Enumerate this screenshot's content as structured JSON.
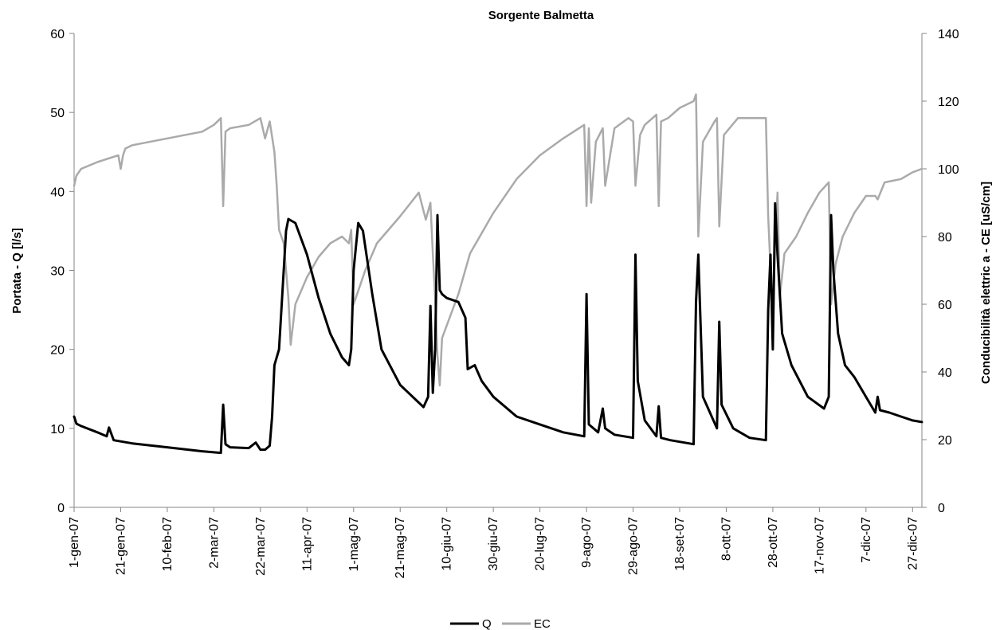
{
  "chart_data": {
    "type": "line",
    "title": "Sorgente Balmetta",
    "ylabel": "Portata - Q  [l/s]",
    "y2label": "Conducibilità elettric a - CE  [uS/cm]",
    "ylim": [
      0,
      60
    ],
    "y2lim": [
      0,
      140
    ],
    "yticks": [
      0,
      10,
      20,
      30,
      40,
      50,
      60
    ],
    "y2ticks": [
      0,
      20,
      40,
      60,
      80,
      100,
      120,
      140
    ],
    "xlim": [
      0,
      364
    ],
    "x_tick_labels": [
      "1-gen-07",
      "21-gen-07",
      "10-feb-07",
      "2-mar-07",
      "22-mar-07",
      "11-apr-07",
      "1-mag-07",
      "21-mag-07",
      "10-giu-07",
      "30-giu-07",
      "20-lug-07",
      "9-ago-07",
      "29-ago-07",
      "18-set-07",
      "8-ott-07",
      "28-ott-07",
      "17-nov-07",
      "7-dic-07",
      "27-dic-07"
    ],
    "x_tick_days": [
      0,
      20,
      40,
      60,
      80,
      100,
      120,
      140,
      160,
      180,
      200,
      220,
      240,
      260,
      280,
      300,
      320,
      340,
      360
    ],
    "legend": "bottom-center",
    "grid": false,
    "series": [
      {
        "name": "Q",
        "axis": "left",
        "color": "#000000",
        "x": [
          0,
          1,
          3,
          10,
          14,
          15,
          17,
          25,
          40,
          55,
          63,
          64,
          65,
          67,
          75,
          78,
          80,
          82,
          84,
          85,
          86,
          88,
          91,
          92,
          95,
          100,
          105,
          110,
          115,
          118,
          119,
          120,
          122,
          124,
          128,
          132,
          140,
          150,
          152,
          153,
          154,
          155,
          156,
          157,
          158,
          160,
          165,
          168,
          169,
          172,
          175,
          180,
          190,
          200,
          210,
          219,
          220,
          221,
          225,
          227,
          228,
          232,
          240,
          241,
          242,
          245,
          250,
          251,
          252,
          256,
          262,
          266,
          267,
          268,
          270,
          276,
          277,
          278,
          283,
          290,
          297,
          298,
          299,
          300,
          301,
          302,
          304,
          308,
          315,
          322,
          324,
          325,
          326,
          328,
          331,
          335,
          340,
          344,
          345,
          346,
          350,
          355,
          360,
          364
        ],
        "values": [
          11.5,
          10.6,
          10.3,
          9.5,
          9.0,
          10.1,
          8.5,
          8.1,
          7.6,
          7.1,
          6.9,
          13.0,
          8.0,
          7.6,
          7.5,
          8.2,
          7.3,
          7.3,
          7.8,
          11.5,
          18.0,
          20.0,
          35.0,
          36.5,
          36.0,
          32.0,
          26.5,
          22.0,
          19.0,
          18.0,
          20.0,
          30.0,
          36.0,
          35.0,
          27.0,
          20.0,
          15.5,
          12.7,
          14.0,
          25.5,
          14.5,
          20.0,
          37.0,
          27.5,
          27.0,
          26.5,
          26.0,
          24.0,
          17.5,
          18.0,
          16.0,
          14.0,
          11.5,
          10.5,
          9.5,
          9.0,
          27.0,
          10.5,
          9.5,
          12.5,
          10.0,
          9.2,
          8.8,
          32.0,
          16.0,
          11.0,
          9.0,
          12.8,
          8.8,
          8.5,
          8.2,
          8.0,
          26.0,
          32.0,
          14.0,
          10.0,
          23.5,
          13.0,
          10.0,
          8.8,
          8.5,
          25.0,
          32.0,
          20.0,
          38.5,
          32.0,
          22.0,
          18.0,
          14.0,
          12.5,
          14.0,
          37.0,
          30.0,
          22.0,
          18.0,
          16.5,
          14.0,
          12.0,
          14.0,
          12.3,
          12.0,
          11.5,
          11.0,
          10.8
        ]
      },
      {
        "name": "EC",
        "axis": "right",
        "color": "#aaaaaa",
        "x": [
          0,
          1,
          3,
          10,
          19,
          20,
          21,
          22,
          25,
          40,
          55,
          60,
          63,
          64,
          65,
          67,
          75,
          80,
          82,
          84,
          86,
          87,
          88,
          90,
          91,
          92,
          93,
          95,
          100,
          105,
          110,
          115,
          118,
          119,
          120,
          125,
          130,
          140,
          148,
          151,
          153,
          154,
          155,
          156,
          157,
          158,
          165,
          170,
          180,
          190,
          200,
          210,
          219,
          220,
          221,
          222,
          224,
          227,
          228,
          232,
          238,
          240,
          241,
          243,
          245,
          250,
          251,
          252,
          255,
          260,
          266,
          267,
          268,
          270,
          275,
          276,
          277,
          279,
          285,
          297,
          298,
          300,
          301,
          302,
          303,
          305,
          310,
          315,
          320,
          324,
          325,
          327,
          330,
          335,
          340,
          344,
          345,
          348,
          355,
          360,
          364
        ],
        "values": [
          95,
          98,
          100,
          102,
          104,
          100,
          104,
          106,
          107,
          109,
          111,
          113,
          115,
          89,
          111,
          112,
          113,
          115,
          109,
          114,
          105,
          95,
          82,
          78,
          70,
          62,
          48,
          60,
          68,
          74,
          78,
          80,
          78,
          82,
          60,
          70,
          78,
          86,
          93,
          85,
          90,
          75,
          62,
          45,
          36,
          50,
          63,
          75,
          87,
          97,
          104,
          109,
          113,
          89,
          112,
          90,
          108,
          112,
          95,
          112,
          115,
          114,
          95,
          110,
          113,
          116,
          89,
          114,
          115,
          118,
          120,
          122,
          80,
          108,
          114,
          115,
          83,
          110,
          115,
          115,
          86,
          55,
          78,
          93,
          62,
          75,
          80,
          87,
          93,
          96,
          60,
          72,
          80,
          87,
          92,
          92,
          91,
          96,
          97,
          99,
          100
        ]
      }
    ]
  }
}
